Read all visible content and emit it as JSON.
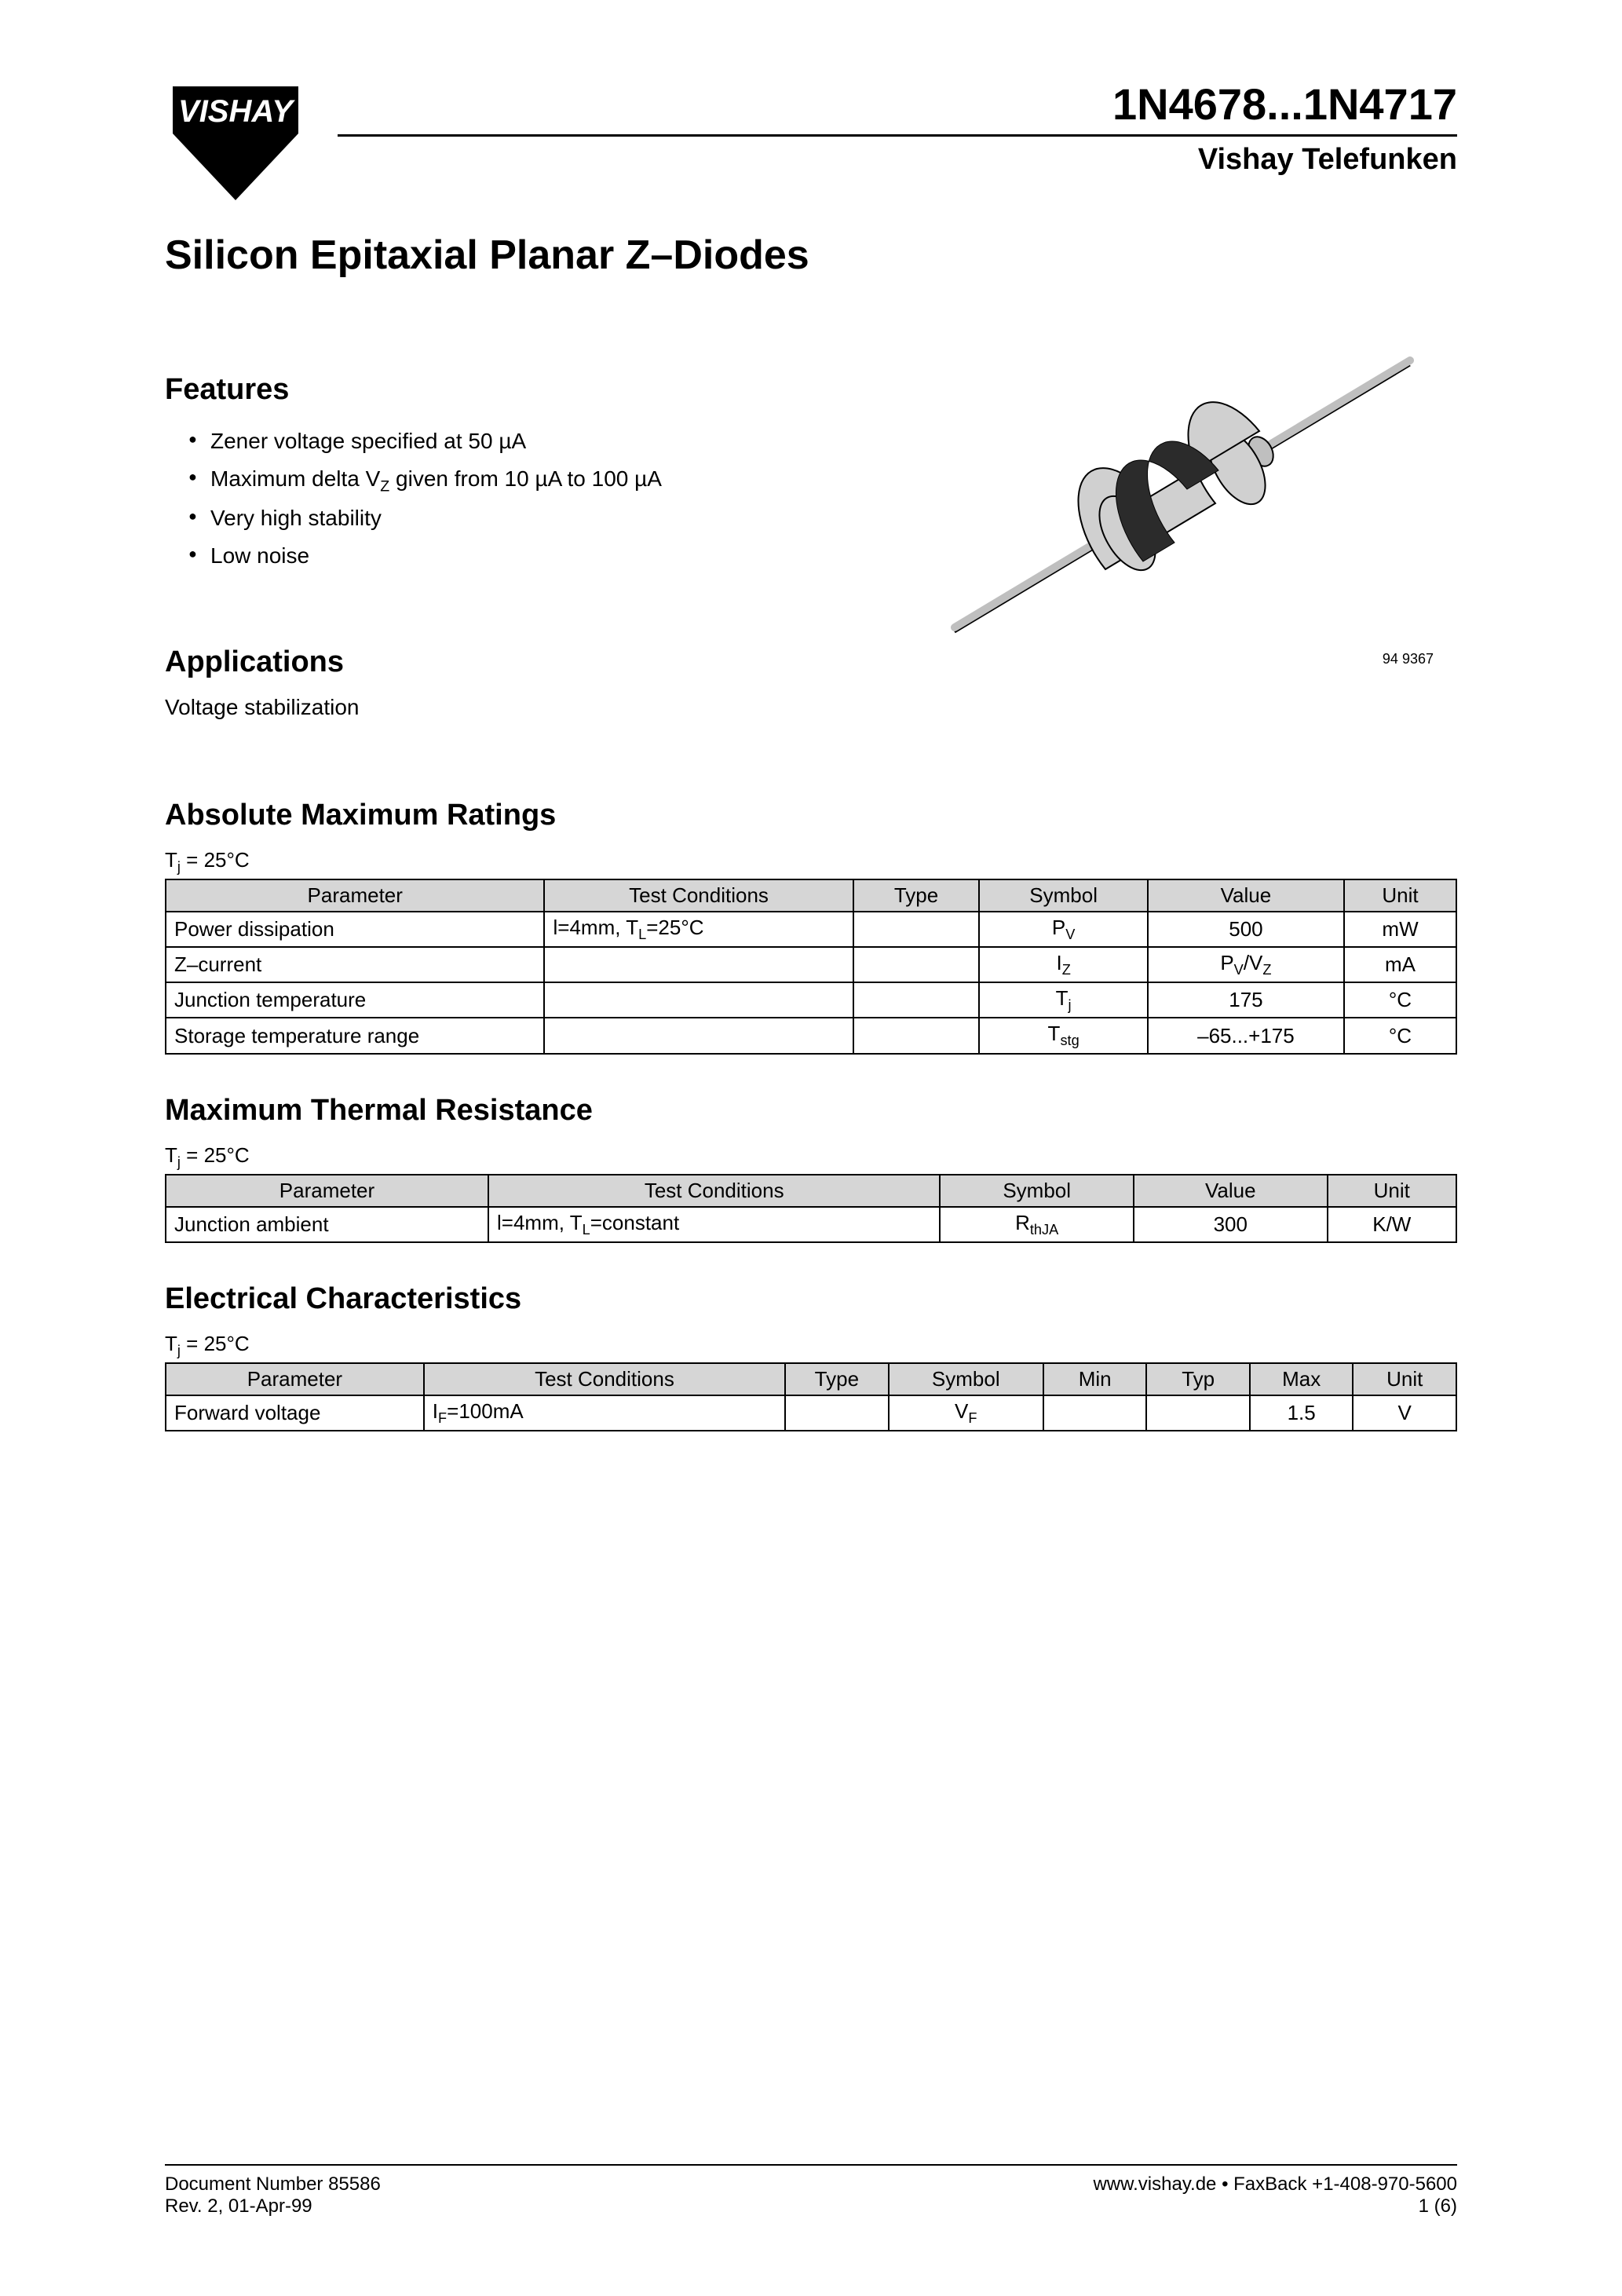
{
  "header": {
    "logo_text": "VISHAY",
    "part_range": "1N4678...1N4717",
    "brand": "Vishay Telefunken"
  },
  "main_title": "Silicon Epitaxial Planar Z–Diodes",
  "features": {
    "heading": "Features",
    "items": [
      "Zener voltage specified at 50 µA",
      "Maximum delta V_Z given from 10 µA to 100 µA",
      "Very high stability",
      "Low noise"
    ]
  },
  "diode_image": {
    "caption": "94 9367",
    "body_color": "#d0d0d0",
    "band_color": "#2b2b2b",
    "lead_color": "#bfbfbf",
    "stroke": "#000000"
  },
  "applications": {
    "heading": "Applications",
    "text": "Voltage stabilization"
  },
  "abs_max": {
    "heading": "Absolute Maximum Ratings",
    "tj": "T_j = 25°C",
    "columns": [
      "Parameter",
      "Test Conditions",
      "Type",
      "Symbol",
      "Value",
      "Unit"
    ],
    "col_widths": [
      "27%",
      "22%",
      "9%",
      "12%",
      "14%",
      "8%"
    ],
    "rows": [
      [
        "Power dissipation",
        "l=4mm, T_L=25°C",
        "",
        "P_V",
        "500",
        "mW"
      ],
      [
        "Z–current",
        "",
        "",
        "I_Z",
        "P_V/V_Z",
        "mA"
      ],
      [
        "Junction temperature",
        "",
        "",
        "T_j",
        "175",
        "°C"
      ],
      [
        "Storage temperature range",
        "",
        "",
        "T_stg",
        "–65...+175",
        "°C"
      ]
    ]
  },
  "thermal": {
    "heading": "Maximum Thermal Resistance",
    "tj": "T_j = 25°C",
    "columns": [
      "Parameter",
      "Test Conditions",
      "Symbol",
      "Value",
      "Unit"
    ],
    "col_widths": [
      "25%",
      "35%",
      "15%",
      "15%",
      "10%"
    ],
    "rows": [
      [
        "Junction ambient",
        "l=4mm, T_L=constant",
        "R_thJA",
        "300",
        "K/W"
      ]
    ]
  },
  "electrical": {
    "heading": "Electrical Characteristics",
    "tj": "T_j = 25°C",
    "columns": [
      "Parameter",
      "Test Conditions",
      "Type",
      "Symbol",
      "Min",
      "Typ",
      "Max",
      "Unit"
    ],
    "col_widths": [
      "20%",
      "28%",
      "8%",
      "12%",
      "8%",
      "8%",
      "8%",
      "8%"
    ],
    "rows": [
      [
        "Forward voltage",
        "I_F=100mA",
        "",
        "V_F",
        "",
        "",
        "1.5",
        "V"
      ]
    ]
  },
  "footer": {
    "left_line1": "Document Number 85586",
    "left_line2": "Rev. 2, 01-Apr-99",
    "right_line1": "www.vishay.de • FaxBack +1-408-970-5600",
    "right_line2": "1 (6)"
  }
}
